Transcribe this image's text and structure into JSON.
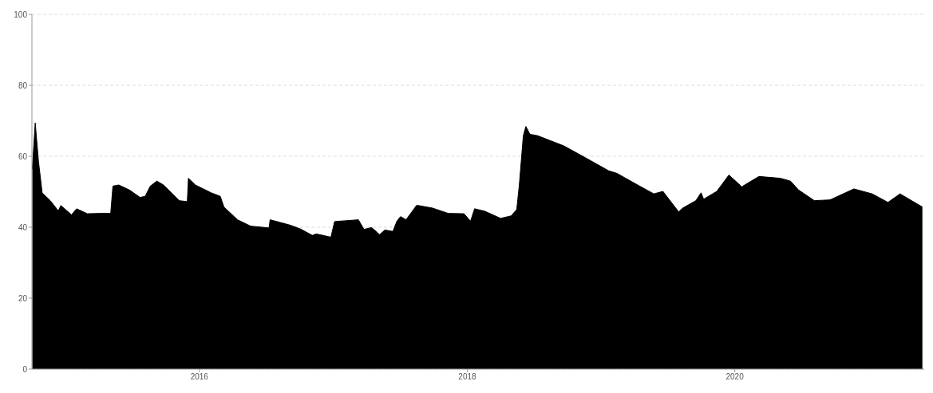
{
  "chart_data": {
    "type": "area",
    "x": [
      "2014-10-02",
      "2014-10-10",
      "2014-10-19",
      "2014-10-29",
      "2014-11-20",
      "2014-12-12",
      "2014-12-19",
      "2015-01-17",
      "2015-01-31",
      "2015-03-01",
      "2015-04-06",
      "2015-05-04",
      "2015-05-10",
      "2015-05-26",
      "2015-06-24",
      "2015-07-23",
      "2015-08-06",
      "2015-08-20",
      "2015-09-07",
      "2015-09-25",
      "2015-11-07",
      "2015-11-29",
      "2015-12-02",
      "2015-12-21",
      "2016-02-02",
      "2016-02-27",
      "2016-03-08",
      "2016-04-14",
      "2016-05-20",
      "2016-07-09",
      "2016-07-12",
      "2016-09-04",
      "2016-10-03",
      "2016-11-04",
      "2016-11-15",
      "2016-12-25",
      "2017-01-04",
      "2017-03-10",
      "2017-03-25",
      "2017-04-15",
      "2017-05-07",
      "2017-05-21",
      "2017-06-12",
      "2017-06-23",
      "2017-07-03",
      "2017-07-18",
      "2017-08-16",
      "2017-09-28",
      "2017-11-10",
      "2017-12-23",
      "2018-01-10",
      "2018-01-21",
      "2018-02-18",
      "2018-04-02",
      "2018-05-01",
      "2018-05-16",
      "2018-05-23",
      "2018-06-03",
      "2018-06-10",
      "2018-06-21",
      "2018-07-12",
      "2018-09-22",
      "2018-11-19",
      "2019-01-22",
      "2019-02-13",
      "2019-04-04",
      "2019-05-25",
      "2019-06-19",
      "2019-08-01",
      "2019-08-12",
      "2019-09-17",
      "2019-10-01",
      "2019-10-08",
      "2019-11-13",
      "2019-12-16",
      "2019-12-30",
      "2020-01-20",
      "2020-03-07",
      "2020-05-04",
      "2020-06-01",
      "2020-06-23",
      "2020-08-05",
      "2020-09-17",
      "2020-11-21",
      "2021-01-10",
      "2021-02-22",
      "2021-03-27",
      "2021-05-27"
    ],
    "series": [
      {
        "color": "#000000",
        "values": [
          56.3,
          69.4,
          58.5,
          49.7,
          47.5,
          44.6,
          46.1,
          43.5,
          45.2,
          43.8,
          43.9,
          43.9,
          51.6,
          51.9,
          50.5,
          48.4,
          48.7,
          51.6,
          53.0,
          51.9,
          47.5,
          47.2,
          53.8,
          51.9,
          49.7,
          48.7,
          45.7,
          42.1,
          40.3,
          39.8,
          42.1,
          40.6,
          39.5,
          37.7,
          38.1,
          37.2,
          41.6,
          42.1,
          39.4,
          39.9,
          37.9,
          39.2,
          38.8,
          41.7,
          43.0,
          42.1,
          46.2,
          45.4,
          43.9,
          43.8,
          41.7,
          45.2,
          44.5,
          42.5,
          43.2,
          45.0,
          51.9,
          65.8,
          68.4,
          66.2,
          65.8,
          62.9,
          59.6,
          55.9,
          55.2,
          52.3,
          49.4,
          50.1,
          44.3,
          45.4,
          47.5,
          49.7,
          47.9,
          50.1,
          54.7,
          53.4,
          51.4,
          54.3,
          53.8,
          53.0,
          50.5,
          47.5,
          47.7,
          50.8,
          49.4,
          47.0,
          49.4,
          45.7
        ]
      }
    ],
    "xlim": [
      "2014-10-01",
      "2021-06-01"
    ],
    "xticks": [
      {
        "value": "2016-01-01",
        "label": "2016"
      },
      {
        "value": "2018-01-01",
        "label": "2018"
      },
      {
        "value": "2020-01-01",
        "label": "2020"
      }
    ],
    "ylim": [
      0,
      100
    ],
    "yticks": [
      0,
      20,
      40,
      60,
      80,
      100
    ],
    "grid": "y"
  }
}
